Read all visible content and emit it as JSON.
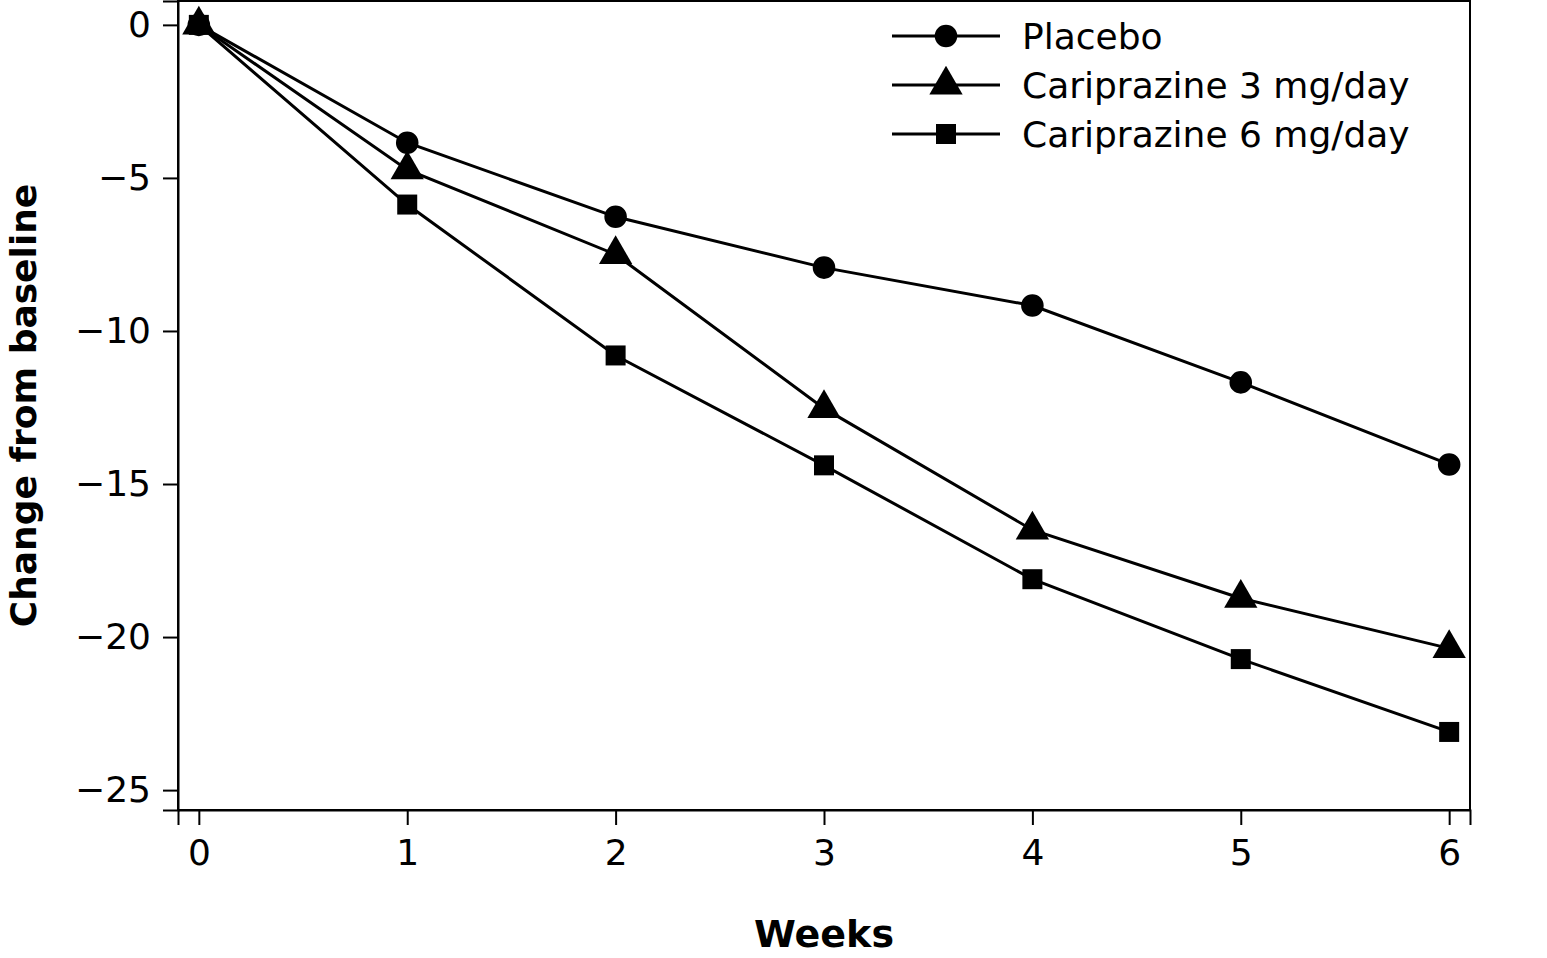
{
  "chart_data": {
    "type": "line",
    "x_label": "Weeks",
    "y_label": "Change from baseline",
    "x": [
      0,
      1,
      2,
      3,
      4,
      5,
      6
    ],
    "series": [
      {
        "name": "Placebo",
        "color": "#000000",
        "marker": "circle",
        "line_style": "solid",
        "values": [
          0,
          -3.85,
          -6.27,
          -7.93,
          -9.17,
          -11.68,
          -14.36
        ]
      },
      {
        "name": "Cariprazine 3 mg/day",
        "color": "#000000",
        "marker": "triangle",
        "line_style": "solid",
        "values": [
          0,
          -4.73,
          -7.5,
          -12.53,
          -16.5,
          -18.73,
          -20.37
        ]
      },
      {
        "name": "Cariprazine 6 mg/day",
        "color": "#000000",
        "marker": "square",
        "line_style": "solid",
        "values": [
          0,
          -5.87,
          -10.8,
          -14.39,
          -18.11,
          -20.72,
          -23.1
        ]
      }
    ],
    "xlim": [
      -0.1,
      6.1
    ],
    "xticks": [
      0,
      1,
      2,
      3,
      4,
      5,
      6
    ],
    "ylim": [
      -25.65,
      0.78
    ],
    "yticks": [
      {
        "value": 0,
        "label": "0"
      },
      {
        "value": -5,
        "label": "−5"
      },
      {
        "value": -10,
        "label": "−10"
      },
      {
        "value": -15,
        "label": "−15"
      },
      {
        "value": -20,
        "label": "−20"
      },
      {
        "value": -25,
        "label": "−25"
      }
    ],
    "grid": false,
    "legend": "top-right"
  }
}
